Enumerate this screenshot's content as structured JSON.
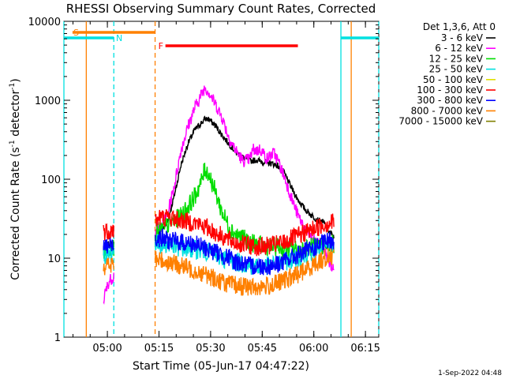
{
  "chart_data": {
    "type": "line",
    "title": "RHESSI Observing Summary Count Rates, Corrected",
    "xlabel": "Start Time (05-Jun-17 04:47:22)",
    "ylabel": "Corrected Count Rate (s⁻¹ detector⁻¹)",
    "ylabel_main": "Corrected Count Rate (s",
    "ylabel_exp1": "-1",
    "ylabel_mid": " detector",
    "ylabel_exp2": "-1",
    "ylabel_end": ")",
    "y_scale": "log",
    "ylim": [
      1,
      10000
    ],
    "xlim_minutes_after_0447_22": [
      0,
      91.5
    ],
    "x_ticks": [
      {
        "label": "05:00",
        "t": 12.63
      },
      {
        "label": "05:15",
        "t": 27.63
      },
      {
        "label": "05:30",
        "t": 42.63
      },
      {
        "label": "05:45",
        "t": 57.63
      },
      {
        "label": "06:00",
        "t": 72.63
      },
      {
        "label": "06:15",
        "t": 87.63
      }
    ],
    "y_ticks": [
      {
        "label": "1",
        "v": 1
      },
      {
        "label": "10",
        "v": 10
      },
      {
        "label": "100",
        "v": 100
      },
      {
        "label": "1000",
        "v": 1000
      },
      {
        "label": "10000",
        "v": 10000
      }
    ],
    "legend": {
      "placement": "right",
      "header": "Det 1,3,6, Att 0"
    },
    "series": [
      {
        "name": "3 - 6 keV",
        "color": "#000000",
        "points": [
          [
            11.5,
            14
          ],
          [
            13,
            15
          ],
          [
            14.5,
            15
          ],
          [
            26.5,
            18
          ],
          [
            28,
            22
          ],
          [
            30,
            28
          ],
          [
            32,
            60
          ],
          [
            34,
            150
          ],
          [
            36,
            280
          ],
          [
            38,
            420
          ],
          [
            40,
            520
          ],
          [
            41,
            580
          ],
          [
            42,
            580
          ],
          [
            44,
            480
          ],
          [
            46,
            360
          ],
          [
            48,
            280
          ],
          [
            50,
            220
          ],
          [
            52,
            190
          ],
          [
            54,
            170
          ],
          [
            56,
            175
          ],
          [
            58,
            165
          ],
          [
            60,
            160
          ],
          [
            62,
            150
          ],
          [
            64,
            120
          ],
          [
            66,
            80
          ],
          [
            68,
            55
          ],
          [
            70,
            42
          ],
          [
            72,
            35
          ],
          [
            74,
            30
          ],
          [
            75.5,
            28
          ],
          [
            77,
            22
          ],
          [
            78.5,
            18
          ]
        ]
      },
      {
        "name": "6 - 12 keV",
        "color": "#ff00ff",
        "points": [
          [
            11.5,
            3
          ],
          [
            13,
            5
          ],
          [
            14.5,
            6
          ],
          [
            26.5,
            22
          ],
          [
            28,
            25
          ],
          [
            30,
            35
          ],
          [
            32,
            80
          ],
          [
            34,
            230
          ],
          [
            36,
            460
          ],
          [
            38,
            800
          ],
          [
            40,
            1200
          ],
          [
            41,
            1450
          ],
          [
            42,
            1300
          ],
          [
            44,
            900
          ],
          [
            46,
            600
          ],
          [
            48,
            330
          ],
          [
            50,
            230
          ],
          [
            52,
            170
          ],
          [
            54,
            180
          ],
          [
            55,
            240
          ],
          [
            56,
            230
          ],
          [
            57,
            240
          ],
          [
            58,
            215
          ],
          [
            59,
            180
          ],
          [
            60,
            200
          ],
          [
            61,
            215
          ],
          [
            62,
            180
          ],
          [
            64,
            110
          ],
          [
            66,
            60
          ],
          [
            68,
            35
          ],
          [
            70,
            24
          ],
          [
            72,
            18
          ],
          [
            74,
            15
          ],
          [
            76,
            12
          ],
          [
            77,
            9
          ],
          [
            78.5,
            7
          ]
        ]
      },
      {
        "name": "12 - 25 keV",
        "color": "#00dd00",
        "points": [
          [
            11.5,
            12
          ],
          [
            13,
            13
          ],
          [
            14.5,
            14
          ],
          [
            26.5,
            20
          ],
          [
            28,
            22
          ],
          [
            30,
            26
          ],
          [
            32,
            30
          ],
          [
            34,
            34
          ],
          [
            36,
            45
          ],
          [
            38,
            60
          ],
          [
            40,
            95
          ],
          [
            41,
            135
          ],
          [
            42,
            120
          ],
          [
            44,
            70
          ],
          [
            46,
            38
          ],
          [
            48,
            25
          ],
          [
            50,
            20
          ],
          [
            52,
            18
          ],
          [
            54,
            16
          ],
          [
            56,
            15
          ],
          [
            58,
            14
          ],
          [
            60,
            14
          ],
          [
            62,
            14
          ],
          [
            64,
            13
          ],
          [
            66,
            13
          ],
          [
            68,
            13
          ],
          [
            70,
            13
          ],
          [
            72,
            14
          ],
          [
            74,
            14
          ],
          [
            76,
            15
          ],
          [
            78.5,
            15
          ]
        ]
      },
      {
        "name": "25 - 50 keV",
        "color": "#00e0e0",
        "points": [
          [
            11.5,
            11
          ],
          [
            13,
            11
          ],
          [
            14.5,
            12
          ],
          [
            26.5,
            16
          ],
          [
            28,
            15
          ],
          [
            30,
            15
          ],
          [
            32,
            14
          ],
          [
            34,
            13.5
          ],
          [
            36,
            13
          ],
          [
            38,
            13
          ],
          [
            40,
            12.5
          ],
          [
            42,
            12
          ],
          [
            44,
            11
          ],
          [
            46,
            10
          ],
          [
            48,
            9.5
          ],
          [
            50,
            9
          ],
          [
            52,
            8.5
          ],
          [
            54,
            8
          ],
          [
            56,
            8
          ],
          [
            58,
            8
          ],
          [
            60,
            8
          ],
          [
            62,
            8.5
          ],
          [
            64,
            9
          ],
          [
            66,
            9.5
          ],
          [
            68,
            10
          ],
          [
            70,
            11
          ],
          [
            72,
            12
          ],
          [
            74,
            13
          ],
          [
            76,
            14
          ],
          [
            78.5,
            15
          ]
        ]
      },
      {
        "name": "50 - 100 keV",
        "color": "#e0e000",
        "points": []
      },
      {
        "name": "100 - 300 keV",
        "color": "#ff0000",
        "points": [
          [
            11.5,
            22
          ],
          [
            13,
            22
          ],
          [
            14.5,
            23
          ],
          [
            26.5,
            30
          ],
          [
            28,
            33
          ],
          [
            30,
            33
          ],
          [
            32,
            32
          ],
          [
            34,
            30
          ],
          [
            36,
            29
          ],
          [
            38,
            28
          ],
          [
            40,
            26
          ],
          [
            42,
            24
          ],
          [
            44,
            21
          ],
          [
            46,
            19
          ],
          [
            48,
            17
          ],
          [
            50,
            15.5
          ],
          [
            52,
            15
          ],
          [
            54,
            14.5
          ],
          [
            56,
            14
          ],
          [
            58,
            14
          ],
          [
            60,
            14.5
          ],
          [
            62,
            15
          ],
          [
            64,
            16
          ],
          [
            66,
            17.5
          ],
          [
            68,
            19
          ],
          [
            70,
            21
          ],
          [
            72,
            23
          ],
          [
            74,
            25
          ],
          [
            76,
            27
          ],
          [
            78.5,
            29
          ]
        ]
      },
      {
        "name": "300 - 800 keV",
        "color": "#0000ff",
        "points": [
          [
            11.5,
            14
          ],
          [
            13,
            14
          ],
          [
            14.5,
            15
          ],
          [
            26.5,
            18
          ],
          [
            28,
            18
          ],
          [
            30,
            17
          ],
          [
            32,
            16.5
          ],
          [
            34,
            16
          ],
          [
            36,
            15.5
          ],
          [
            38,
            15
          ],
          [
            40,
            14
          ],
          [
            42,
            13
          ],
          [
            44,
            12
          ],
          [
            46,
            11
          ],
          [
            48,
            10
          ],
          [
            50,
            9
          ],
          [
            52,
            8.5
          ],
          [
            54,
            8
          ],
          [
            56,
            8
          ],
          [
            58,
            8
          ],
          [
            60,
            8
          ],
          [
            62,
            8.5
          ],
          [
            64,
            9
          ],
          [
            66,
            10
          ],
          [
            68,
            11
          ],
          [
            70,
            12
          ],
          [
            72,
            13
          ],
          [
            74,
            14.5
          ],
          [
            76,
            16
          ],
          [
            78.5,
            17
          ]
        ]
      },
      {
        "name": "800 - 7000 keV",
        "color": "#ff8000",
        "points": [
          [
            11.5,
            8
          ],
          [
            13,
            8
          ],
          [
            14.5,
            8.5
          ],
          [
            26.5,
            9.5
          ],
          [
            28,
            9.5
          ],
          [
            30,
            9
          ],
          [
            32,
            8.5
          ],
          [
            34,
            8
          ],
          [
            36,
            7.5
          ],
          [
            38,
            7
          ],
          [
            40,
            6.5
          ],
          [
            42,
            6
          ],
          [
            44,
            5.5
          ],
          [
            46,
            5
          ],
          [
            48,
            4.7
          ],
          [
            50,
            4.5
          ],
          [
            52,
            4.4
          ],
          [
            54,
            4.3
          ],
          [
            56,
            4.3
          ],
          [
            58,
            4.4
          ],
          [
            60,
            4.5
          ],
          [
            62,
            4.8
          ],
          [
            64,
            5.2
          ],
          [
            66,
            5.7
          ],
          [
            68,
            6.3
          ],
          [
            70,
            7
          ],
          [
            72,
            8
          ],
          [
            74,
            9
          ],
          [
            76,
            10
          ],
          [
            78.5,
            11
          ]
        ]
      },
      {
        "name": "7000 - 15000 keV",
        "color": "#808000",
        "points": []
      }
    ],
    "flags": [
      {
        "label": "S",
        "color": "#ff8000",
        "t_start": 2.5,
        "t_end": 26.5,
        "level": "top"
      },
      {
        "label": "N",
        "color": "#00e0e0",
        "t_start": 0,
        "t_end": 14.5,
        "level": "second"
      },
      {
        "label": "N",
        "color": "#00e0e0",
        "t_start": 80.5,
        "t_end": 91.5,
        "level": "second"
      },
      {
        "label": "F",
        "color": "#ff0000",
        "t_start": 29.5,
        "t_end": 68,
        "level": "third"
      }
    ],
    "vlines": [
      {
        "t": 0,
        "color": "#00e0e0",
        "style": "solid"
      },
      {
        "t": 6.5,
        "color": "#ff8000",
        "style": "solid"
      },
      {
        "t": 14.5,
        "color": "#00e0e0",
        "style": "dashed"
      },
      {
        "t": 26.5,
        "color": "#ff8000",
        "style": "dashed"
      },
      {
        "t": 80.5,
        "color": "#00e0e0",
        "style": "solid"
      },
      {
        "t": 83.5,
        "color": "#ff8000",
        "style": "solid"
      },
      {
        "t": 91.5,
        "color": "#00e0e0",
        "style": "dashed"
      }
    ],
    "legend_placement": "right",
    "grid": false
  },
  "footer": {
    "timestamp": "1-Sep-2022 04:48"
  }
}
